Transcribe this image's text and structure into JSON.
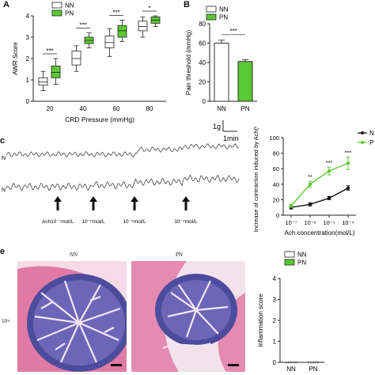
{
  "panels": {
    "a": "A",
    "b": "B",
    "c": "c",
    "e": "e"
  },
  "chart_data": [
    {
      "type": "box",
      "panel": "A",
      "ylabel": "AWR Score",
      "xlabel": "CRD Pressure (mmHg)",
      "categories": [
        "20",
        "40",
        "60",
        "80"
      ],
      "ylim": [
        0,
        4
      ],
      "yticks": [
        0,
        1,
        2,
        3,
        4
      ],
      "legend": [
        "NN",
        "PN"
      ],
      "legend_position": "top-left",
      "colors": {
        "NN": "#ffffff",
        "PN": "#5ac832"
      },
      "series": [
        {
          "name": "NN",
          "boxes": [
            {
              "min": 0.5,
              "q1": 0.75,
              "median": 0.9,
              "q3": 1.1,
              "max": 1.4
            },
            {
              "min": 1.4,
              "q1": 1.7,
              "median": 2.0,
              "q3": 2.35,
              "max": 2.6
            },
            {
              "min": 2.1,
              "q1": 2.5,
              "median": 2.75,
              "q3": 3.05,
              "max": 3.4
            },
            {
              "min": 3.0,
              "q1": 3.3,
              "median": 3.5,
              "q3": 3.75,
              "max": 3.95
            }
          ]
        },
        {
          "name": "PN",
          "boxes": [
            {
              "min": 0.8,
              "q1": 1.1,
              "median": 1.35,
              "q3": 1.65,
              "max": 2.0
            },
            {
              "min": 2.5,
              "q1": 2.7,
              "median": 2.85,
              "q3": 3.0,
              "max": 3.2
            },
            {
              "min": 2.8,
              "q1": 3.0,
              "median": 3.3,
              "q3": 3.55,
              "max": 3.8
            },
            {
              "min": 3.5,
              "q1": 3.65,
              "median": 3.8,
              "q3": 3.95,
              "max": 4.0
            }
          ]
        }
      ],
      "significance": [
        "***",
        "***",
        "***",
        "*"
      ]
    },
    {
      "type": "bar",
      "panel": "B",
      "ylabel": "Pain threshold (mmHg)",
      "categories": [
        "NN",
        "PN"
      ],
      "values": [
        60,
        41
      ],
      "errors": [
        3,
        2
      ],
      "ylim": [
        0,
        80
      ],
      "yticks": [
        0,
        20,
        40,
        60,
        80
      ],
      "legend": [
        "NN",
        "PN"
      ],
      "legend_position": "top-left",
      "colors": {
        "NN": "#ffffff",
        "PN": "#5ac832"
      },
      "significance": "***"
    },
    {
      "type": "line",
      "panel": "C",
      "ylabel": "Increase of contraction induced by Ach(%)",
      "xlabel": "Ach concentration(mol/L)",
      "categories": [
        "10⁻⁷",
        "10⁻⁶",
        "10⁻⁵",
        "10⁻⁴"
      ],
      "ylim": [
        0,
        100
      ],
      "yticks": [
        0,
        20,
        40,
        60,
        80,
        100
      ],
      "legend_position": "top-right",
      "series": [
        {
          "name": "N",
          "color": "#111111",
          "values": [
            10,
            14,
            22,
            35
          ],
          "errors": [
            2,
            2,
            2,
            3
          ]
        },
        {
          "name": "P",
          "color": "#5ac832",
          "values": [
            12,
            40,
            57,
            67
          ],
          "errors": [
            2,
            4,
            5,
            8
          ]
        }
      ],
      "significance": [
        "",
        "**",
        "***",
        "***"
      ]
    },
    {
      "type": "scatter",
      "panel": "E",
      "ylabel": "inflammation score",
      "categories": [
        "NN",
        "PN"
      ],
      "values": [
        0,
        0
      ],
      "ylim": [
        0,
        4
      ],
      "yticks": [
        0,
        1,
        2,
        3,
        4
      ],
      "legend": [
        "NN",
        "PN"
      ],
      "legend_position": "top-left",
      "colors": {
        "NN": "#ffffff",
        "PN": "#5ac832"
      }
    }
  ],
  "traces": {
    "scale_force": "1g",
    "scale_time": "1min",
    "row_labels": [
      "N",
      "N"
    ],
    "doses": [
      "Ach10⁻⁷mol/L",
      "10⁻⁶mol/L",
      "10⁻⁵mol/L",
      "10⁻⁴mol/L"
    ]
  },
  "histology": {
    "col_labels": [
      "NN",
      "PN"
    ],
    "row_label": "10×"
  }
}
